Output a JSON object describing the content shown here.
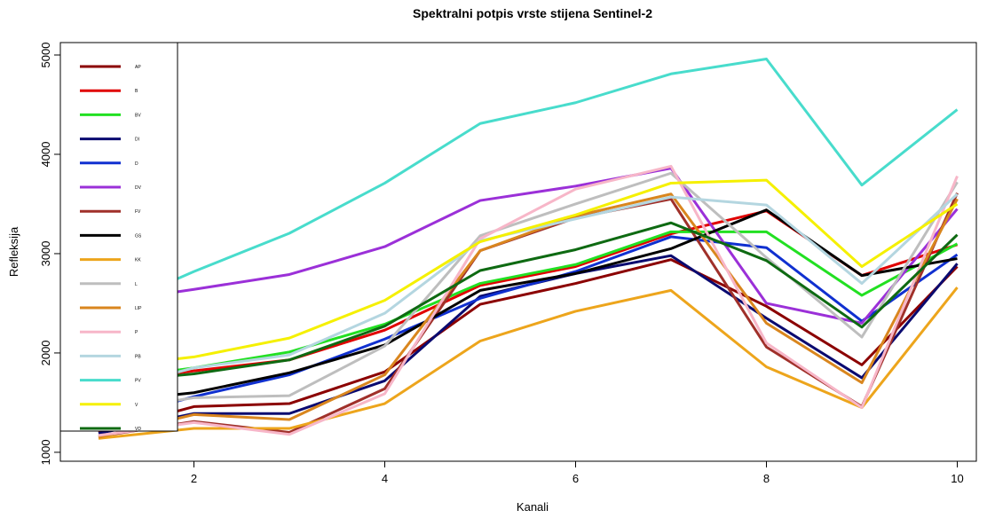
{
  "chart_data": {
    "type": "line",
    "title": "Spektralni potpis vrste stijena Sentinel-2",
    "x_label": "Kanali",
    "y_label": "Refleksija",
    "x": [
      1,
      2,
      3,
      4,
      5,
      6,
      7,
      8,
      9,
      10
    ],
    "xlim": [
      0.6,
      10.2
    ],
    "xticks": [
      2,
      4,
      6,
      8,
      10
    ],
    "ylim": [
      910,
      5125
    ],
    "yticks": [
      1000,
      2000,
      3000,
      4000,
      5000
    ],
    "legend": "top-left",
    "series": [
      {
        "name": "AP",
        "color": "#8b0000",
        "values": [
          1200,
          1460,
          1490,
          1810,
          2490,
          2700,
          2940,
          2470,
          1880,
          2870
        ]
      },
      {
        "name": "B",
        "color": "#e00000",
        "values": [
          1700,
          1820,
          1930,
          2230,
          2680,
          2870,
          3200,
          3430,
          2780,
          3090
        ]
      },
      {
        "name": "BV",
        "color": "#22e022",
        "values": [
          1720,
          1850,
          2010,
          2290,
          2700,
          2890,
          3220,
          3220,
          2580,
          3100
        ]
      },
      {
        "name": "DI",
        "color": "#0a0a70",
        "values": [
          1190,
          1390,
          1390,
          1720,
          2570,
          2800,
          2980,
          2350,
          1750,
          2900
        ]
      },
      {
        "name": "D",
        "color": "#1030d0",
        "values": [
          1300,
          1560,
          1780,
          2140,
          2550,
          2820,
          3170,
          3060,
          2320,
          2990
        ]
      },
      {
        "name": "DV",
        "color": "#9b30d8",
        "values": [
          2500,
          2640,
          2790,
          3070,
          3535,
          3680,
          3860,
          2500,
          2300,
          3450
        ]
      },
      {
        "name": "FV",
        "color": "#a0302a",
        "values": [
          1160,
          1310,
          1200,
          1640,
          3030,
          3360,
          3550,
          2060,
          1460,
          3610
        ]
      },
      {
        "name": "GS",
        "color": "#000000",
        "values": [
          1500,
          1600,
          1800,
          2080,
          2630,
          2800,
          3050,
          3440,
          2780,
          2950
        ]
      },
      {
        "name": "KK",
        "color": "#eda51c",
        "values": [
          1140,
          1240,
          1240,
          1490,
          2120,
          2420,
          2630,
          1860,
          1450,
          2660
        ]
      },
      {
        "name": "L",
        "color": "#bebebe",
        "values": [
          1400,
          1550,
          1570,
          2070,
          3180,
          3500,
          3810,
          2960,
          2160,
          3720
        ]
      },
      {
        "name": "LIP",
        "color": "#d9861e",
        "values": [
          1150,
          1380,
          1330,
          1780,
          3030,
          3380,
          3600,
          2300,
          1700,
          3550
        ]
      },
      {
        "name": "P",
        "color": "#f7b6c8",
        "values": [
          1170,
          1300,
          1180,
          1590,
          3150,
          3650,
          3880,
          2100,
          1450,
          3780
        ]
      },
      {
        "name": "PB",
        "color": "#b4d6e0",
        "values": [
          1600,
          1850,
          1980,
          2400,
          3130,
          3350,
          3570,
          3490,
          2700,
          3600
        ]
      },
      {
        "name": "PV",
        "color": "#48dccc",
        "values": [
          2400,
          2820,
          3205,
          3710,
          4310,
          4520,
          4810,
          4960,
          3690,
          4450
        ]
      },
      {
        "name": "V",
        "color": "#f5f000",
        "values": [
          1850,
          1960,
          2150,
          2530,
          3120,
          3390,
          3710,
          3740,
          2870,
          3500
        ]
      },
      {
        "name": "VD",
        "color": "#0e6a12",
        "values": [
          1700,
          1790,
          1930,
          2270,
          2830,
          3040,
          3310,
          2930,
          2260,
          3190
        ]
      }
    ]
  }
}
